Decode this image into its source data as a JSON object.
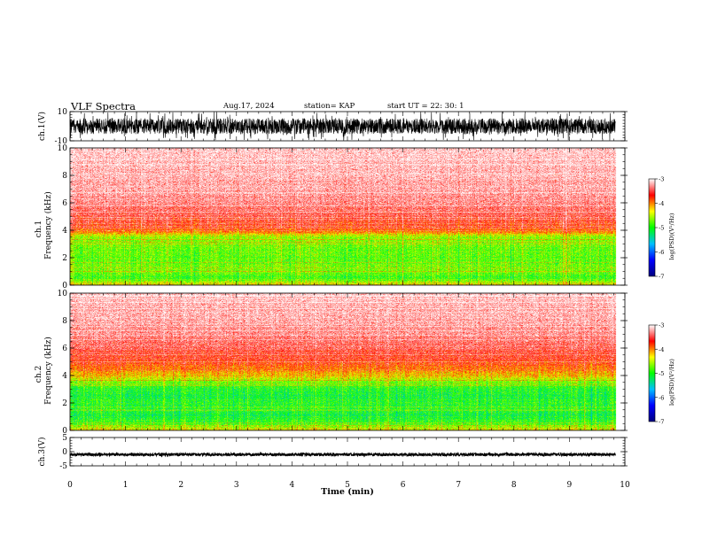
{
  "header": {
    "title": "VLF Spectra",
    "date": "Aug.17, 2024",
    "station": "station= KAP",
    "start": "start  UT  =   22: 30: 1"
  },
  "chart_data": [
    {
      "type": "line",
      "name": "ch1-waveform",
      "ylabel": "ch.1(V)",
      "ylim": [
        -10,
        10
      ],
      "yticks": [
        "10",
        "-10"
      ],
      "xlim": [
        0,
        10
      ],
      "data_end_min": 9.83
    },
    {
      "type": "heatmap",
      "name": "ch1-spectrogram",
      "ylabel_top": "ch.1",
      "ylabel": "Frequency (kHz)",
      "ylim": [
        0,
        10
      ],
      "yticks": [
        "0",
        "2",
        "4",
        "6",
        "8",
        "10"
      ],
      "xlim": [
        0,
        10
      ],
      "colorbar": {
        "label": "log(PSD)(V²/Hz)",
        "range": [
          -7,
          -3
        ],
        "ticks": [
          "-3",
          "-4",
          "-5",
          "-6",
          "-7"
        ]
      },
      "profile_freq_khz": [
        0.0,
        0.5,
        1.0,
        2.0,
        3.0,
        3.5,
        3.8,
        4.2,
        5.0,
        6.0,
        7.0,
        8.0,
        9.0,
        10.0
      ],
      "profile_logpsd": [
        -4.3,
        -4.9,
        -4.7,
        -4.8,
        -4.7,
        -4.6,
        -4.1,
        -3.7,
        -3.5,
        -3.3,
        -3.2,
        -3.15,
        -3.1,
        -3.05
      ]
    },
    {
      "type": "heatmap",
      "name": "ch2-spectrogram",
      "ylabel_top": "ch.2",
      "ylabel": "Frequency (kHz)",
      "ylim": [
        0,
        10
      ],
      "yticks": [
        "0",
        "2",
        "4",
        "6",
        "8",
        "10"
      ],
      "xlim": [
        0,
        10
      ],
      "colorbar": {
        "label": "log(PSD)(V²/Hz)",
        "range": [
          -7,
          -3
        ],
        "ticks": [
          "-3",
          "-4",
          "-5",
          "-6",
          "-7"
        ]
      },
      "profile_freq_khz": [
        0.0,
        0.5,
        1.0,
        1.5,
        2.0,
        2.5,
        3.0,
        3.5,
        4.0,
        4.5,
        5.0,
        6.0,
        7.0,
        8.0,
        9.0,
        10.0
      ],
      "profile_logpsd": [
        -4.3,
        -4.9,
        -5.1,
        -5.0,
        -5.0,
        -5.1,
        -5.0,
        -4.7,
        -4.2,
        -3.9,
        -3.7,
        -3.45,
        -3.3,
        -3.2,
        -3.15,
        -3.1
      ]
    },
    {
      "type": "line",
      "name": "ch3-waveform",
      "ylabel": "ch.3(V)",
      "ylim": [
        -5,
        5
      ],
      "yticks": [
        "5",
        "0",
        "-5"
      ],
      "xlim": [
        0,
        10
      ],
      "data_end_min": 9.83,
      "xlabel": "Time  (min)",
      "xticks": [
        "0",
        "1",
        "2",
        "3",
        "4",
        "5",
        "6",
        "7",
        "8",
        "9",
        "10"
      ]
    }
  ],
  "colors": {
    "colormap": [
      "#00007f",
      "#0000ff",
      "#00bfff",
      "#00ff00",
      "#ffff00",
      "#ff0000",
      "#ffffff"
    ],
    "trace": "#000000"
  }
}
